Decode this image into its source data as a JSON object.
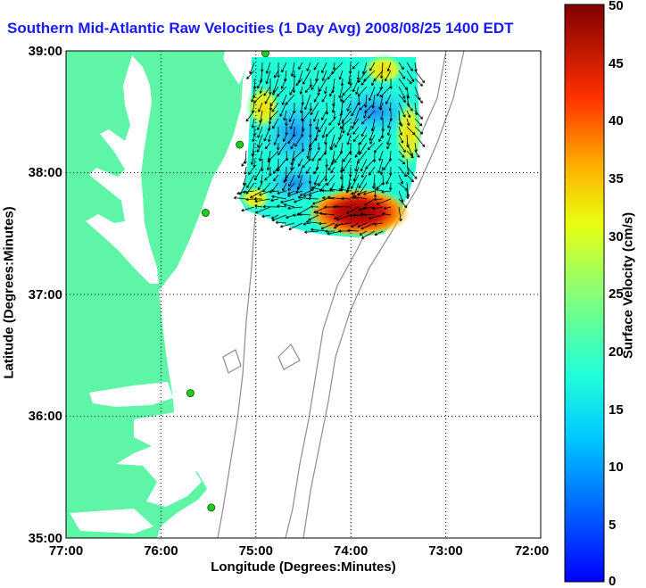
{
  "title": "Southern Mid-Atlantic Raw Velocities (1 Day Avg) 2008/08/25 1400 EDT",
  "axes": {
    "xlabel": "Longitude (Degrees:Minutes)",
    "ylabel": "Latitude (Degrees:Minutes)",
    "x_ticks": [
      "77:00",
      "76:00",
      "75:00",
      "74:00",
      "73:00",
      "72:00"
    ],
    "y_ticks": [
      "39:00",
      "38:00",
      "37:00",
      "36:00",
      "35:00"
    ],
    "x_range_deg_west": [
      77,
      72
    ],
    "y_range_deg_north": [
      35,
      39
    ],
    "grid": "dotted"
  },
  "colorbar": {
    "label": "Surface Velocity (cm/s)",
    "ticks": [
      "50",
      "45",
      "40",
      "35",
      "30",
      "25",
      "20",
      "15",
      "10",
      "5",
      "0"
    ],
    "range": [
      0,
      50
    ],
    "colormap": "jet"
  },
  "colors": {
    "land": "#5ef5a7",
    "title": "#1a1aff",
    "bathymetry": "#8c8c8c",
    "station": "#22cc22"
  },
  "stations": [
    {
      "lon": 74.9,
      "lat": 38.98
    },
    {
      "lon": 75.17,
      "lat": 38.23
    },
    {
      "lon": 75.53,
      "lat": 37.67
    },
    {
      "lon": 75.69,
      "lat": 36.19
    },
    {
      "lon": 75.47,
      "lat": 35.25
    }
  ]
}
